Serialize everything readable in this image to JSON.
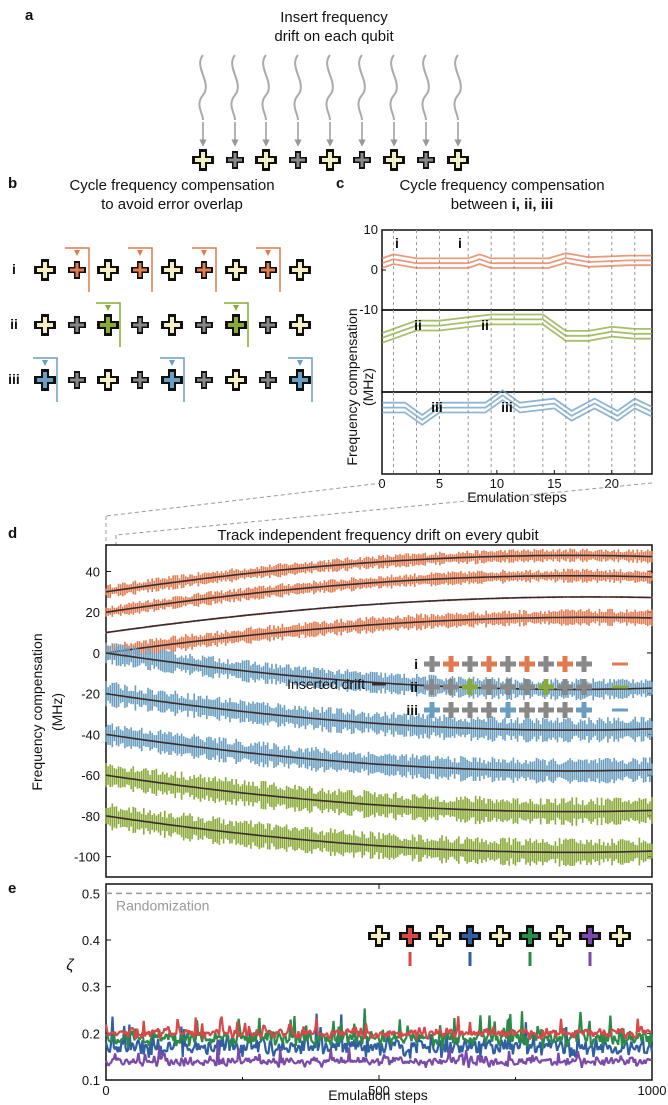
{
  "panels": {
    "a": {
      "label": "a",
      "title_line1": "Insert frequency",
      "title_line2": "drift on each qubit"
    },
    "b": {
      "label": "b",
      "title_line1": "Cycle frequency compensation",
      "title_line2": "to avoid error overlap",
      "rows": [
        "i",
        "ii",
        "iii"
      ]
    },
    "c": {
      "label": "c",
      "title_line1": "Cycle frequency compensation",
      "title_line2_prefix": "between ",
      "title_line2_bold": "i, ii, iii"
    },
    "d": {
      "label": "d",
      "title": "Track independent frequency drift on every qubit",
      "legend_drift": "Inserted drift",
      "legend_rows": [
        "i",
        "ii",
        "iii"
      ]
    },
    "e": {
      "label": "e",
      "randomization": "Randomization"
    }
  },
  "colors": {
    "i": "#e07a50",
    "ii": "#8aaa3a",
    "iii": "#6a9ec0",
    "dark": "#3a2c2a",
    "gray": "#888888",
    "qubit_fill": "#f4eec4",
    "e_red": "#d84848",
    "e_blue": "#2f5fa0",
    "e_green": "#2a8a48",
    "e_purple": "#7a4aaa"
  },
  "chart_data": [
    {
      "id": "c",
      "type": "line",
      "xlabel": "Emulation steps",
      "ylabel": "Frequency compensation (MHz)",
      "xlim": [
        0,
        23.5
      ],
      "ylim": [
        -10,
        10
      ],
      "xticks": [
        0,
        5,
        10,
        15,
        20
      ],
      "yticks": [
        10,
        0,
        -10
      ],
      "step_markers": [
        1,
        3,
        5,
        7.5,
        9.5,
        11.5,
        14,
        16,
        18,
        20,
        22
      ],
      "annotations": [
        "i",
        "i",
        "ii",
        "ii",
        "iii",
        "iii"
      ],
      "series": [
        {
          "x": [
            0,
            1,
            3,
            7.5,
            8.5,
            9.5,
            14.5,
            16,
            18,
            21.5,
            23.5
          ],
          "y": [
            0.5,
            1.5,
            0.5,
            0.5,
            1.5,
            0.5,
            0.5,
            1.8,
            0.8,
            1.2,
            1.2
          ]
        },
        {
          "x": [
            0,
            3,
            5,
            9.5,
            14,
            16,
            18,
            20,
            22,
            23.5
          ],
          "y": [
            2,
            5,
            5,
            6.5,
            6.5,
            2.5,
            2.5,
            3.5,
            3,
            3
          ]
        },
        {
          "x": [
            0,
            2,
            3.5,
            5,
            9,
            10.5,
            12,
            15,
            16.5,
            18.5,
            20.5,
            22,
            23.5
          ],
          "y": [
            5,
            5,
            2,
            5,
            5,
            8,
            5,
            6,
            3,
            6,
            3,
            6,
            4
          ]
        }
      ]
    },
    {
      "id": "d",
      "type": "line",
      "xlabel": "",
      "ylabel": "Frequency compensation (MHz)",
      "xlim": [
        0,
        1000
      ],
      "ylim": [
        -110,
        53
      ],
      "yticks": [
        40,
        20,
        0,
        -20,
        -40,
        -60,
        -80,
        -100
      ],
      "series": [
        {
          "group": "i",
          "start": 30,
          "end": 47,
          "peak": 50,
          "noise": 2.5
        },
        {
          "group": "i",
          "start": 20,
          "end": 37,
          "peak": 40,
          "noise": 2.5
        },
        {
          "group": "i",
          "start": 10,
          "end": 27,
          "peak": 29,
          "noise": 0.4
        },
        {
          "group": "i",
          "start": 0,
          "end": 17,
          "peak": 19,
          "noise": 3
        },
        {
          "group": "iii",
          "start": 0,
          "end": -17,
          "peak": -20,
          "noise": 4
        },
        {
          "group": "iii",
          "start": -20,
          "end": -37,
          "peak": -40,
          "noise": 4.5
        },
        {
          "group": "iii",
          "start": -40,
          "end": -57,
          "peak": -60,
          "noise": 4.5
        },
        {
          "group": "ii",
          "start": -60,
          "end": -77,
          "peak": -80,
          "noise": 5
        },
        {
          "group": "ii",
          "start": -80,
          "end": -97,
          "peak": -100,
          "noise": 5
        }
      ]
    },
    {
      "id": "e",
      "type": "line",
      "xlabel": "Emulation steps",
      "ylabel": "ζ",
      "xlim": [
        0,
        1000
      ],
      "ylim": [
        0.1,
        0.52
      ],
      "xticks": [
        0,
        500,
        1000
      ],
      "yticks": [
        0.5,
        0.4,
        0.3,
        0.2,
        0.1
      ],
      "randomization_level": 0.5,
      "series": [
        {
          "color": "e_blue",
          "mean": 0.17,
          "noise": 0.03
        },
        {
          "color": "e_green",
          "mean": 0.19,
          "noise": 0.025
        },
        {
          "color": "e_purple",
          "mean": 0.14,
          "noise": 0.015
        },
        {
          "color": "e_red",
          "mean": 0.2,
          "noise": 0.015
        }
      ]
    }
  ]
}
